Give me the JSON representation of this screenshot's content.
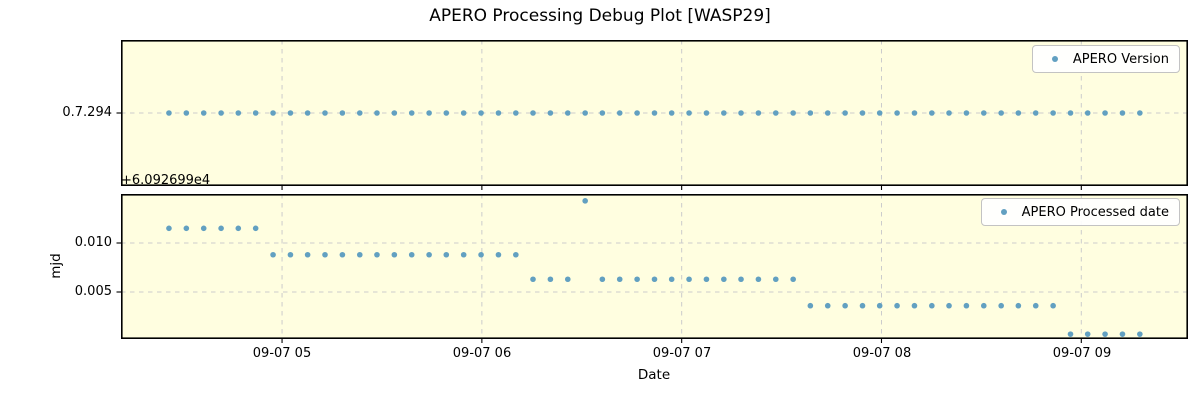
{
  "title": "APERO Processing Debug Plot [WASP29]",
  "colors": {
    "figure_bg": "#ffffff",
    "plot_bg": "#fffee0",
    "marker": "#62a0c1",
    "grid": "#cccccc",
    "spine": "#000000",
    "legend_border": "#c3c3c3",
    "text": "#000000"
  },
  "xaxis": {
    "label": "Date",
    "ticks": [
      "09-07 05",
      "09-07 06",
      "09-07 07",
      "09-07 08",
      "09-07 09"
    ],
    "tick_hours": [
      5,
      6,
      7,
      8,
      9
    ],
    "xlim_hours": [
      4.194,
      9.534
    ]
  },
  "top_plot": {
    "legend_label": "APERO Version",
    "ytick_label": "0.7.294"
  },
  "bottom_plot": {
    "legend_label": "APERO Processed date",
    "ylabel": "mjd",
    "ytick_labels": [
      "0.010",
      "0.005"
    ],
    "ytick_values": [
      0.01,
      0.005
    ],
    "offset_text": "+6.092699e4",
    "ylim": [
      0.0002,
      0.015
    ]
  },
  "chart_data": {
    "type": "scatter",
    "title": "APERO Processing Debug Plot [WASP29]",
    "xlabel": "Date",
    "x_tick_labels": [
      "09-07 05",
      "09-07 06",
      "09-07 07",
      "09-07 08",
      "09-07 09"
    ],
    "x_tick_hours": [
      5,
      6,
      7,
      8,
      9
    ],
    "xlim_hours": [
      4.194,
      9.534
    ],
    "grid": true,
    "legend_position": "upper right",
    "x_hours": [
      4.434,
      4.521,
      4.608,
      4.695,
      4.781,
      4.868,
      4.955,
      5.042,
      5.128,
      5.215,
      5.302,
      5.389,
      5.475,
      5.562,
      5.649,
      5.736,
      5.822,
      5.909,
      5.996,
      6.083,
      6.17,
      6.256,
      6.343,
      6.43,
      6.517,
      6.603,
      6.69,
      6.777,
      6.864,
      6.95,
      7.037,
      7.124,
      7.211,
      7.297,
      7.384,
      7.471,
      7.558,
      7.644,
      7.731,
      7.818,
      7.905,
      7.991,
      8.078,
      8.165,
      8.252,
      8.338,
      8.425,
      8.512,
      8.599,
      8.685,
      8.772,
      8.859,
      8.946,
      9.032,
      9.119,
      9.206,
      9.293
    ],
    "series": [
      {
        "name": "APERO Version",
        "subplot": "top",
        "marker": "circle",
        "values_constant": "0.7.294",
        "ytick_labels": [
          "0.7.294"
        ]
      },
      {
        "name": "APERO Processed date",
        "subplot": "bottom",
        "marker": "circle",
        "ylabel": "mjd",
        "y_offset": "+6.092699e4",
        "ylim": [
          0.0002,
          0.015
        ],
        "values": [
          0.0115,
          0.0115,
          0.0115,
          0.0115,
          0.0115,
          0.0115,
          0.0088,
          0.0088,
          0.0088,
          0.0088,
          0.0088,
          0.0088,
          0.0088,
          0.0088,
          0.0088,
          0.0088,
          0.0088,
          0.0088,
          0.0088,
          0.0088,
          0.0088,
          0.0063,
          0.0063,
          0.0063,
          0.0143,
          0.0063,
          0.0063,
          0.0063,
          0.0063,
          0.0063,
          0.0063,
          0.0063,
          0.0063,
          0.0063,
          0.0063,
          0.0063,
          0.0063,
          0.0036,
          0.0036,
          0.0036,
          0.0036,
          0.0036,
          0.0036,
          0.0036,
          0.0036,
          0.0036,
          0.0036,
          0.0036,
          0.0036,
          0.0036,
          0.0036,
          0.0036,
          0.0007,
          0.0007,
          0.0007,
          0.0007,
          0.0007
        ]
      }
    ]
  }
}
